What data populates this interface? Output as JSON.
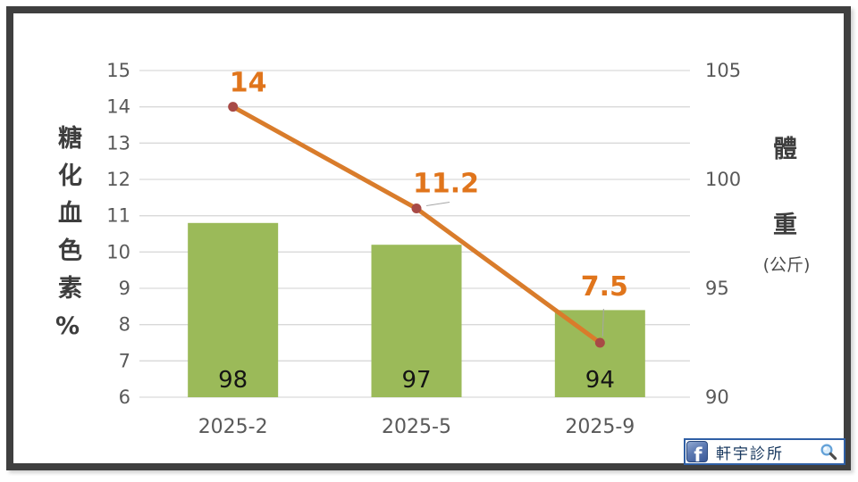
{
  "frame": {
    "border_color": "#3f3f3f"
  },
  "chart_data": {
    "type": "combo",
    "categories": [
      "2025-2",
      "2025-5",
      "2025-9"
    ],
    "series": [
      {
        "name": "體重",
        "type": "bar",
        "axis": "right",
        "values": [
          98,
          97,
          94
        ],
        "labels": [
          "98",
          "97",
          "94"
        ],
        "color": "#9bba59",
        "label_color": "#141414"
      },
      {
        "name": "糖化血色素",
        "type": "line",
        "axis": "left",
        "values": [
          14,
          11.2,
          7.5
        ],
        "labels": [
          "14",
          "11.2",
          "7.5"
        ],
        "color": "#d97c2b",
        "marker_color": "#a84a46",
        "label_color": "#e0751c"
      }
    ],
    "left_axis": {
      "title": "糖化血色素%",
      "min": 6,
      "max": 15,
      "tick_labels": [
        "15",
        "14",
        "13",
        "12",
        "11",
        "10",
        "9",
        "8",
        "7",
        "6"
      ]
    },
    "right_axis": {
      "title": "體重",
      "subtitle": "(公斤)",
      "min": 90,
      "max": 105,
      "tick_labels": [
        "105",
        "100",
        "95",
        "90"
      ]
    },
    "grid": true,
    "gridline_color": "#d9d9d9",
    "tick_color": "#595959"
  },
  "footer_widget": {
    "facebook_f": "f",
    "label": "軒宇診所"
  }
}
